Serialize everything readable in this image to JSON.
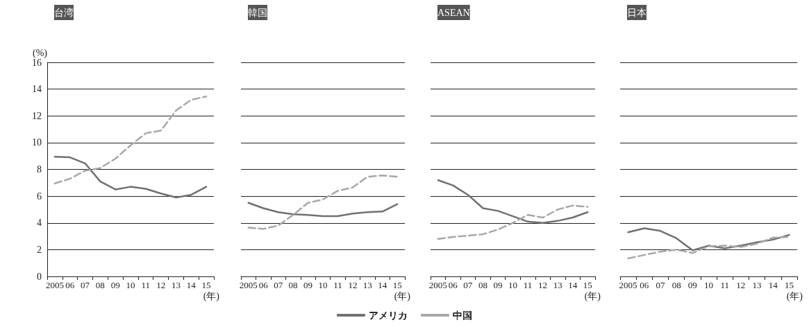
{
  "chart_data": [
    {
      "type": "line",
      "title": "台湾",
      "ylabel": "(%)",
      "xlabel": "(年)",
      "categories": [
        "2005",
        "06",
        "07",
        "08",
        "09",
        "10",
        "11",
        "12",
        "13",
        "14",
        "15"
      ],
      "ylim": [
        0,
        16
      ],
      "yticks": [
        0,
        2,
        4,
        6,
        8,
        10,
        12,
        14,
        16
      ],
      "grid": "y",
      "legend": "bottom",
      "marker": "none",
      "series": [
        {
          "name": "アメリカ",
          "color": "#707070",
          "line_style": "solid",
          "values": [
            8.95,
            8.9,
            8.45,
            7.1,
            6.5,
            6.7,
            6.55,
            6.2,
            5.9,
            6.1,
            6.7
          ]
        },
        {
          "name": "中国",
          "color": "#a8a8a8",
          "line_style": "dashed",
          "values": [
            6.95,
            7.3,
            7.9,
            8.1,
            8.8,
            9.8,
            10.7,
            10.9,
            12.4,
            13.2,
            13.45
          ]
        }
      ]
    },
    {
      "type": "line",
      "title": "韓国",
      "xlabel": "(年)",
      "categories": [
        "2005",
        "06",
        "07",
        "08",
        "09",
        "10",
        "11",
        "12",
        "13",
        "14",
        "15"
      ],
      "ylim": [
        0,
        16
      ],
      "yticks": [
        0,
        2,
        4,
        6,
        8,
        10,
        12,
        14,
        16
      ],
      "grid": "y",
      "tick_labels": "x",
      "legend": "bottom",
      "marker": "none",
      "series": [
        {
          "name": "アメリカ",
          "color": "#707070",
          "line_style": "solid",
          "values": [
            5.5,
            5.1,
            4.8,
            4.65,
            4.6,
            4.5,
            4.5,
            4.7,
            4.8,
            4.85,
            5.4
          ]
        },
        {
          "name": "中国",
          "color": "#a8a8a8",
          "line_style": "dashed",
          "values": [
            3.65,
            3.55,
            3.8,
            4.6,
            5.5,
            5.75,
            6.4,
            6.65,
            7.45,
            7.55,
            7.45
          ]
        }
      ]
    },
    {
      "type": "line",
      "title": "ASEAN",
      "xlabel": "(年)",
      "categories": [
        "2005",
        "06",
        "07",
        "08",
        "09",
        "10",
        "11",
        "12",
        "13",
        "14",
        "15"
      ],
      "ylim": [
        0,
        16
      ],
      "yticks": [
        0,
        2,
        4,
        6,
        8,
        10,
        12,
        14,
        16
      ],
      "grid": "y",
      "tick_labels": "x",
      "legend": "bottom",
      "marker": "none",
      "series": [
        {
          "name": "アメリカ",
          "color": "#707070",
          "line_style": "solid",
          "values": [
            7.2,
            6.8,
            6.1,
            5.1,
            4.9,
            4.5,
            4.1,
            4.0,
            4.15,
            4.4,
            4.8
          ]
        },
        {
          "name": "中国",
          "color": "#a8a8a8",
          "line_style": "dashed",
          "values": [
            2.8,
            2.95,
            3.05,
            3.15,
            3.5,
            4.0,
            4.6,
            4.4,
            5.0,
            5.3,
            5.2
          ]
        }
      ]
    },
    {
      "type": "line",
      "title": "日本",
      "xlabel": "(年)",
      "categories": [
        "2005",
        "06",
        "07",
        "08",
        "09",
        "10",
        "11",
        "12",
        "13",
        "14",
        "15"
      ],
      "ylim": [
        0,
        16
      ],
      "yticks": [
        0,
        2,
        4,
        6,
        8,
        10,
        12,
        14,
        16
      ],
      "grid": "y",
      "tick_labels": "x",
      "legend": "bottom",
      "marker": "none",
      "series": [
        {
          "name": "アメリカ",
          "color": "#707070",
          "line_style": "solid",
          "values": [
            3.3,
            3.6,
            3.4,
            2.85,
            1.95,
            2.3,
            2.1,
            2.3,
            2.55,
            2.75,
            3.1
          ]
        },
        {
          "name": "中国",
          "color": "#a8a8a8",
          "line_style": "dashed",
          "values": [
            1.35,
            1.6,
            1.85,
            2.0,
            1.75,
            2.25,
            2.3,
            2.2,
            2.45,
            2.9,
            2.95
          ]
        }
      ]
    }
  ]
}
